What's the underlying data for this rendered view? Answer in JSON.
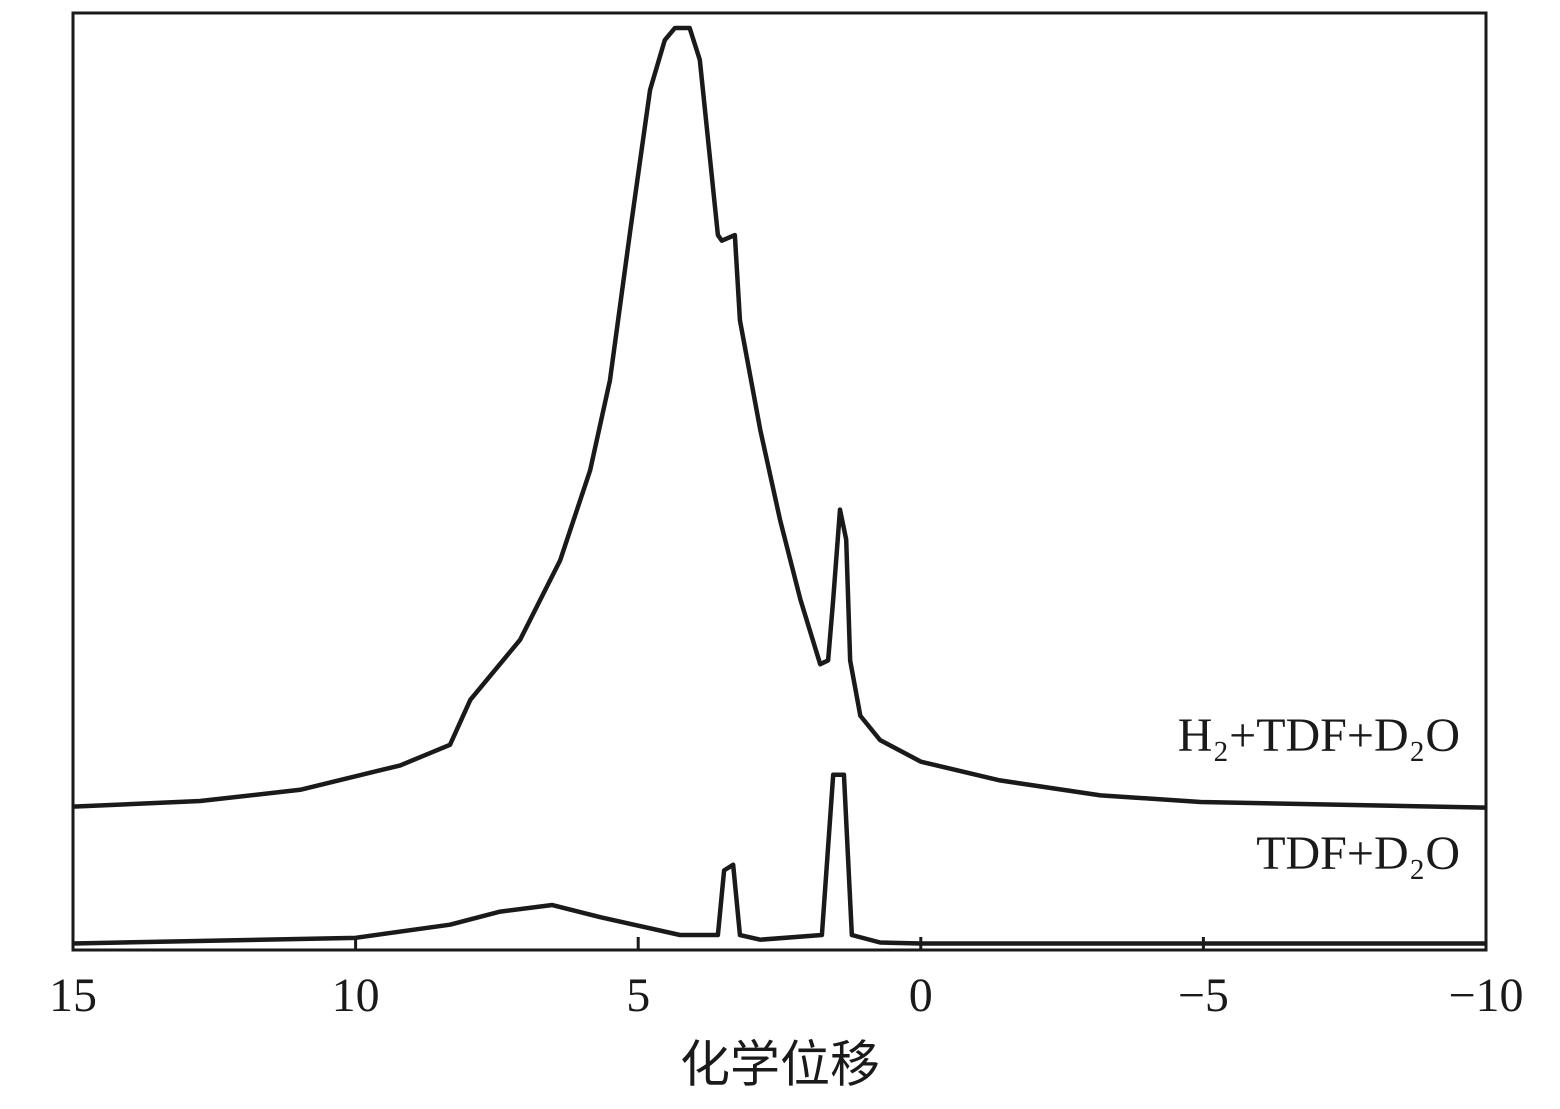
{
  "chart_data": {
    "type": "line",
    "xlabel": "化学位移",
    "xlim": [
      15,
      -10
    ],
    "xticks": [
      15,
      10,
      5,
      0,
      {
        "value": -5,
        "label": "−5"
      },
      {
        "value": -10,
        "label": "−10"
      }
    ],
    "ylim": [
      0,
      100
    ],
    "series": [
      {
        "name": "H₂+TDF+D₂O",
        "color": "#1a1a1a",
        "x": [
          15,
          12.75,
          10.98,
          9.21,
          8.33,
          7.97,
          7.09,
          6.38,
          5.85,
          5.5,
          5.14,
          4.79,
          4.53,
          4.35,
          4.09,
          3.91,
          3.59,
          3.52,
          3.29,
          3.2,
          2.84,
          2.49,
          2.13,
          1.78,
          1.64,
          1.55,
          1.43,
          1.32,
          1.25,
          1.07,
          0.72,
          0,
          -1.4,
          -3.18,
          -4.95,
          -10
        ],
        "values": [
          15.3,
          15.9,
          17.1,
          19.7,
          21.9,
          26.7,
          33.1,
          41.6,
          51.2,
          60.8,
          76.8,
          91.8,
          97.1,
          98.4,
          98.4,
          95.0,
          76.3,
          75.7,
          76.3,
          67.2,
          55.5,
          45.9,
          37.4,
          30.5,
          30.9,
          37.4,
          47.0,
          43.8,
          30.9,
          25.0,
          22.4,
          20.1,
          18.1,
          16.5,
          15.8,
          15.2
        ]
      },
      {
        "name": "TDF+D₂O",
        "color": "#1a1a1a",
        "x": [
          15,
          10,
          8.33,
          7.44,
          6.52,
          5.67,
          4.26,
          3.59,
          3.48,
          3.32,
          3.2,
          2.84,
          1.75,
          1.55,
          1.36,
          1.22,
          0.72,
          0,
          -10
        ],
        "values": [
          0.7,
          1.3,
          2.7,
          4.1,
          4.8,
          3.5,
          1.6,
          1.6,
          8.5,
          9.1,
          1.6,
          1.1,
          1.6,
          18.7,
          18.7,
          1.6,
          0.8,
          0.7,
          0.7
        ]
      }
    ]
  }
}
